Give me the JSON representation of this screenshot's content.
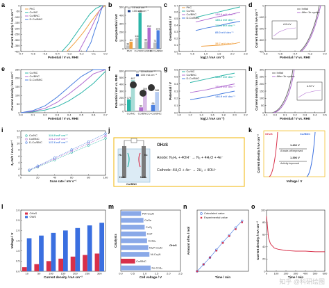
{
  "panel_labels": [
    "a",
    "b",
    "c",
    "d",
    "e",
    "f",
    "g",
    "h",
    "i",
    "j",
    "k",
    "l",
    "m",
    "n",
    "o"
  ],
  "colors": {
    "ptc": "#f0a040",
    "conc": "#2bb5a8",
    "cobnc": "#b06bd0",
    "dcobnc": "#4a7fe0",
    "red": "#d8304a",
    "blue": "#3a6fe0",
    "gray": "#c0c0c0",
    "teal_bar": "#2bb5a8",
    "navy": "#1a3a8a"
  },
  "chart_data": [
    {
      "id": "a",
      "type": "line",
      "xlabel": "Potential / V vs. RHE",
      "ylabel": "Current density / mA cm⁻²",
      "xlim": [
        -0.7,
        0.0
      ],
      "ylim": [
        -400,
        0
      ],
      "xticks": [
        "-0.7",
        "-0.6",
        "-0.5",
        "-0.4",
        "-0.3",
        "-0.2",
        "-0.1",
        "0.0"
      ],
      "yticks": [
        "-400",
        "-350",
        "-300",
        "-250",
        "-200",
        "-150",
        "-100",
        "-50",
        "0"
      ],
      "legend": [
        "Pt/C",
        "Co/NC",
        "Co/BNC",
        "D-Co/BNC"
      ],
      "series": [
        {
          "name": "Pt/C",
          "x": [
            -0.32,
            -0.25,
            -0.18,
            -0.12,
            -0.07,
            -0.03,
            0.0
          ],
          "y": [
            -400,
            -320,
            -230,
            -140,
            -70,
            -20,
            0
          ]
        },
        {
          "name": "Co/NC",
          "x": [
            -0.36,
            -0.3,
            -0.24,
            -0.18,
            -0.13,
            -0.08,
            -0.03
          ],
          "y": [
            -400,
            -330,
            -240,
            -150,
            -75,
            -25,
            0
          ]
        },
        {
          "name": "Co/BNC",
          "x": [
            -0.22,
            -0.17,
            -0.12,
            -0.08,
            -0.05,
            -0.02
          ],
          "y": [
            -400,
            -300,
            -200,
            -110,
            -45,
            0
          ]
        },
        {
          "name": "D-Co/BNC",
          "x": [
            -0.16,
            -0.12,
            -0.09,
            -0.06,
            -0.04,
            -0.02
          ],
          "y": [
            -400,
            -320,
            -220,
            -130,
            -50,
            0
          ]
        }
      ]
    },
    {
      "id": "b",
      "type": "bar",
      "ylabel": "Overpotential / mV",
      "categories": [
        "Pt/C",
        "Co/NC",
        "Co/BNC",
        "D-Co/BNC"
      ],
      "ylim": [
        0,
        500
      ],
      "yticks": [
        "0",
        "100",
        "200",
        "300",
        "400",
        "500"
      ],
      "legend": [
        "10 mA cm⁻²",
        "100 mA cm⁻²"
      ],
      "series": [
        {
          "name": "10 mA cm⁻²",
          "values": [
            39,
            132,
            86,
            73
          ]
        },
        {
          "name": "100 mA cm⁻²",
          "values": [
            84,
            430,
            252,
            221
          ]
        }
      ]
    },
    {
      "id": "c",
      "type": "line",
      "xlabel": "log(J / mA cm⁻²)",
      "ylabel": "Overpotential / V",
      "xlim": [
        0.0,
        2.4
      ],
      "ylim": [
        0.0,
        0.7
      ],
      "xticks": [
        "0.0",
        "0.5",
        "1.0",
        "1.5",
        "2.0",
        "2.5"
      ],
      "yticks": [
        "0.0",
        "0.1",
        "0.2",
        "0.3",
        "0.4",
        "0.5",
        "0.6",
        "0.7"
      ],
      "legend": [
        "Pt/C",
        "Co/NC",
        "Co/BNC",
        "D-Co/BNC"
      ],
      "annotations": [
        "139.9 mV dec⁻¹",
        "135.1 mV dec⁻¹",
        "113.0 mV dec⁻¹",
        "85.0 mV dec⁻¹",
        "35.7 mV dec⁻¹"
      ],
      "series": [
        {
          "name": "Pt/C",
          "x": [
            0.8,
            1.2,
            1.6,
            2.0,
            2.2
          ],
          "y": [
            0.08,
            0.09,
            0.1,
            0.12,
            0.14
          ]
        },
        {
          "name": "Co/NC",
          "x": [
            0.6,
            1.0,
            1.4,
            1.8,
            2.2
          ],
          "y": [
            0.52,
            0.56,
            0.6,
            0.64,
            0.68
          ]
        },
        {
          "name": "Co/BNC",
          "x": [
            0.6,
            1.0,
            1.4,
            1.8,
            2.2
          ],
          "y": [
            0.45,
            0.49,
            0.53,
            0.56,
            0.6
          ]
        },
        {
          "name": "D-Co/BNC",
          "x": [
            0.6,
            1.0,
            1.4,
            1.8,
            2.2
          ],
          "y": [
            0.32,
            0.36,
            0.39,
            0.43,
            0.46
          ]
        }
      ]
    },
    {
      "id": "d",
      "type": "line",
      "xlabel": "Potential / V vs. RHE",
      "ylabel": "Current density / mA cm⁻²",
      "xlim": [
        -0.8,
        0.0
      ],
      "ylim": [
        -400,
        0
      ],
      "xticks": [
        "-0.8",
        "-0.6",
        "-0.4",
        "-0.2",
        "0.0"
      ],
      "yticks": [
        "-400",
        "-300",
        "-200",
        "-100",
        "0"
      ],
      "legend": [
        "Initial",
        "After 1k cycles"
      ],
      "inset": {
        "label": "Δ 6 mV",
        "ylabel": "Δ V"
      }
    },
    {
      "id": "e",
      "type": "line",
      "xlabel": "Potential / V vs. RHE",
      "ylabel": "Current density / mA cm⁻²",
      "xlim": [
        0.0,
        0.7
      ],
      "ylim": [
        0,
        250
      ],
      "xticks": [
        "0.0",
        "0.1",
        "0.2",
        "0.3",
        "0.4",
        "0.5",
        "0.6",
        "0.7"
      ],
      "yticks": [
        "0",
        "50",
        "100",
        "150",
        "200",
        "250"
      ],
      "legend": [
        "Co/NC",
        "Co/BNC",
        "D-Co/BNC"
      ],
      "series": [
        {
          "name": "Co/NC",
          "x": [
            0.0,
            0.1,
            0.2,
            0.3,
            0.4,
            0.5,
            0.6,
            0.7
          ],
          "y": [
            0,
            5,
            15,
            35,
            70,
            115,
            170,
            240
          ]
        },
        {
          "name": "Co/BNC",
          "x": [
            0.0,
            0.1,
            0.2,
            0.3,
            0.4,
            0.5,
            0.6,
            0.7
          ],
          "y": [
            0,
            8,
            25,
            60,
            110,
            165,
            225,
            250
          ]
        },
        {
          "name": "D-Co/BNC",
          "x": [
            0.0,
            0.1,
            0.2,
            0.3,
            0.4,
            0.5,
            0.6,
            0.7
          ],
          "y": [
            0,
            12,
            40,
            90,
            150,
            210,
            250,
            250
          ]
        }
      ]
    },
    {
      "id": "f",
      "type": "bar",
      "ylabel": "Potential / mV vs. RHE",
      "categories": [
        "Co/NC",
        "Co/BNC",
        "D-Co/BNC"
      ],
      "ylim": [
        0,
        600
      ],
      "yticks": [
        "0",
        "100",
        "200",
        "300",
        "400",
        "500",
        "600"
      ],
      "legend": [
        "10 mA cm⁻²",
        "100 mA cm⁻²"
      ],
      "series": [
        {
          "name": "10 mA cm⁻²",
          "values": [
            178,
            59,
            95
          ]
        },
        {
          "name": "100 mA cm⁻²",
          "values": [
            467,
            309,
            288
          ]
        }
      ]
    },
    {
      "id": "g",
      "type": "line",
      "xlabel": "log(J / mA cm⁻²)",
      "ylabel": "Potential / V",
      "xlim": [
        1.0,
        2.2
      ],
      "ylim": [
        0.0,
        0.6
      ],
      "xticks": [
        "1.0",
        "1.2",
        "1.4",
        "1.6",
        "1.8",
        "2.0",
        "2.2"
      ],
      "yticks": [
        "0.0",
        "0.1",
        "0.2",
        "0.3",
        "0.4",
        "0.5",
        "0.6"
      ],
      "legend": [
        "Co/NC",
        "Co/BNC",
        "D-Co/BNC"
      ],
      "annotations": [
        "180.7 mV dec⁻¹",
        "151.6 mV dec⁻¹",
        "146.9 mV dec⁻¹"
      ],
      "series": [
        {
          "name": "Co/NC",
          "x": [
            1.2,
            1.5,
            1.8,
            2.0
          ],
          "y": [
            0.42,
            0.47,
            0.52,
            0.55
          ]
        },
        {
          "name": "Co/BNC",
          "x": [
            1.2,
            1.5,
            1.8,
            2.0
          ],
          "y": [
            0.28,
            0.32,
            0.37,
            0.4
          ]
        },
        {
          "name": "D-Co/BNC",
          "x": [
            1.2,
            1.5,
            1.8,
            2.0
          ],
          "y": [
            0.18,
            0.22,
            0.27,
            0.3
          ]
        }
      ]
    },
    {
      "id": "h",
      "type": "line",
      "xlabel": "Potential / V vs. RHE",
      "ylabel": "Current density / mA cm⁻²",
      "xlim": [
        -0.1,
        0.5
      ],
      "ylim": [
        0,
        300
      ],
      "xticks": [
        "-0.1",
        "0.0",
        "0.1",
        "0.2",
        "0.3",
        "0.4",
        "0.5"
      ],
      "yticks": [
        "0",
        "50",
        "100",
        "150",
        "200",
        "250",
        "300"
      ],
      "legend": [
        "Initial",
        "After 1k cycles"
      ],
      "inset": {
        "label": "Δ 92 V",
        "ylabel": "Δ V"
      }
    },
    {
      "id": "i",
      "type": "scatter",
      "xlabel": "Scan rate / mV s⁻¹",
      "ylabel": "Jₐ-Jc/2 / mA cm⁻²",
      "xlim": [
        0,
        100
      ],
      "ylim": [
        0,
        14
      ],
      "xticks": [
        "0",
        "20",
        "40",
        "60",
        "80",
        "100"
      ],
      "yticks": [
        "0",
        "2",
        "4",
        "6",
        "8",
        "10",
        "12",
        "14"
      ],
      "legend": [
        "Co/NC",
        "Co/BNC",
        "D-Co/BNC"
      ],
      "annotations": [
        "124.9 mF cm⁻²",
        "131.2 mF cm⁻²",
        "137.6 mF cm⁻²"
      ],
      "series": [
        {
          "name": "Co/NC",
          "x": [
            10,
            20,
            40,
            60,
            80,
            100
          ],
          "y": [
            1.5,
            2.6,
            4.8,
            7.2,
            9.4,
            11.6
          ]
        },
        {
          "name": "Co/BNC",
          "x": [
            10,
            20,
            40,
            60,
            80,
            100
          ],
          "y": [
            1.6,
            2.8,
            5.2,
            7.7,
            10.1,
            12.4
          ]
        },
        {
          "name": "D-Co/BNC",
          "x": [
            10,
            20,
            40,
            60,
            80,
            100
          ],
          "y": [
            1.7,
            3.0,
            5.5,
            8.1,
            10.6,
            13.1
          ]
        }
      ]
    },
    {
      "id": "k",
      "type": "line",
      "xlabel": "Voltage / V",
      "ylabel": "Current density / mA cm⁻²",
      "legend": [
        "OHzS",
        "Co/BNC"
      ],
      "annotations": [
        "1.402 V",
        "1.396 V",
        "A trade-off improved",
        "Activity improved"
      ]
    },
    {
      "id": "l",
      "type": "bar",
      "xlabel": "Current density / mA cm⁻²",
      "ylabel": "Voltage / V",
      "categories": [
        "10",
        "50",
        "100",
        "150",
        "200",
        "250",
        "300"
      ],
      "ylim": [
        0.0,
        3.0
      ],
      "yticks": [
        "0.0",
        "0.5",
        "1.0",
        "1.5",
        "2.0",
        "2.5",
        "3.0"
      ],
      "legend": [
        "OHzS",
        "OWS"
      ],
      "series": [
        {
          "name": "OHzS",
          "values": [
            0.2,
            0.35,
            0.5,
            0.62,
            0.72,
            0.8,
            0.87
          ]
        },
        {
          "name": "OWS",
          "values": [
            1.62,
            1.75,
            1.88,
            2.0,
            2.12,
            2.25,
            2.38
          ]
        }
      ]
    },
    {
      "id": "m",
      "type": "bar",
      "xlabel": "Cell voltage / V",
      "ylabel": "Catalysts",
      "categories": [
        "PW-CoₓN",
        "CoSe",
        "CoS₂",
        "CoP",
        "CoSe₂",
        "Ni₂P-CoₓN",
        "Ni-Co₂N",
        "Co/BNC",
        "Fe-CoS₂"
      ],
      "xlim": [
        0.0,
        2.5
      ],
      "xticks": [
        "0.0",
        "0.5",
        "1.0",
        "1.5",
        "2.0",
        "2.5"
      ],
      "annotations": [
        "OHzS"
      ],
      "values": [
        0.85,
        0.95,
        1.0,
        1.05,
        1.1,
        1.15,
        1.2,
        0.6,
        1.25
      ]
    },
    {
      "id": "n",
      "type": "scatter",
      "xlabel": "Time / min",
      "ylabel": "Amount of H₂ / mol",
      "xlim": [
        0,
        80
      ],
      "ylim": [
        0,
        80
      ],
      "legend": [
        "Calculated value",
        "Experimental value"
      ],
      "series": [
        {
          "name": "Calculated value",
          "x": [
            0,
            10,
            20,
            30,
            40,
            50,
            60,
            70
          ],
          "y": [
            0,
            9,
            18,
            28,
            38,
            47,
            57,
            66
          ]
        },
        {
          "name": "Experimental value",
          "x": [
            0,
            10,
            20,
            30,
            40,
            50,
            60,
            70
          ],
          "y": [
            0,
            9,
            18,
            27,
            37,
            46,
            55,
            64
          ]
        }
      ]
    },
    {
      "id": "o",
      "type": "line",
      "xlabel": "Time / min",
      "ylabel": "Current density / mA cm⁻²",
      "xlim": [
        0,
        600
      ],
      "ylim": [
        0,
        100
      ],
      "xticks": [
        "0",
        "100",
        "200",
        "300",
        "400",
        "500",
        "600"
      ],
      "yticks": [
        "0",
        "20",
        "40",
        "60",
        "80",
        "100"
      ],
      "series": [
        {
          "name": "",
          "x": [
            0,
            20,
            40,
            80,
            120,
            200,
            300,
            400,
            500,
            600
          ],
          "y": [
            90,
            55,
            45,
            38,
            36,
            34,
            33,
            33,
            32,
            32
          ]
        }
      ]
    }
  ],
  "panel_j": {
    "title": "OHzS",
    "anode": "Anode: N₂H₄ + 4OH⁻ → N₂ + 4H₂O + 4e⁻",
    "cathode": "Cathode: 4H₂O + 4e⁻ → 2H₂ + 4OH⁻",
    "h2_label": "H₂",
    "n2_label": "N₂",
    "h2o_label": "H₂O",
    "n2h4_label": "N₂H₄",
    "electrode_label": "Co/BNC"
  },
  "watermark": "知乎 @科研绘图"
}
